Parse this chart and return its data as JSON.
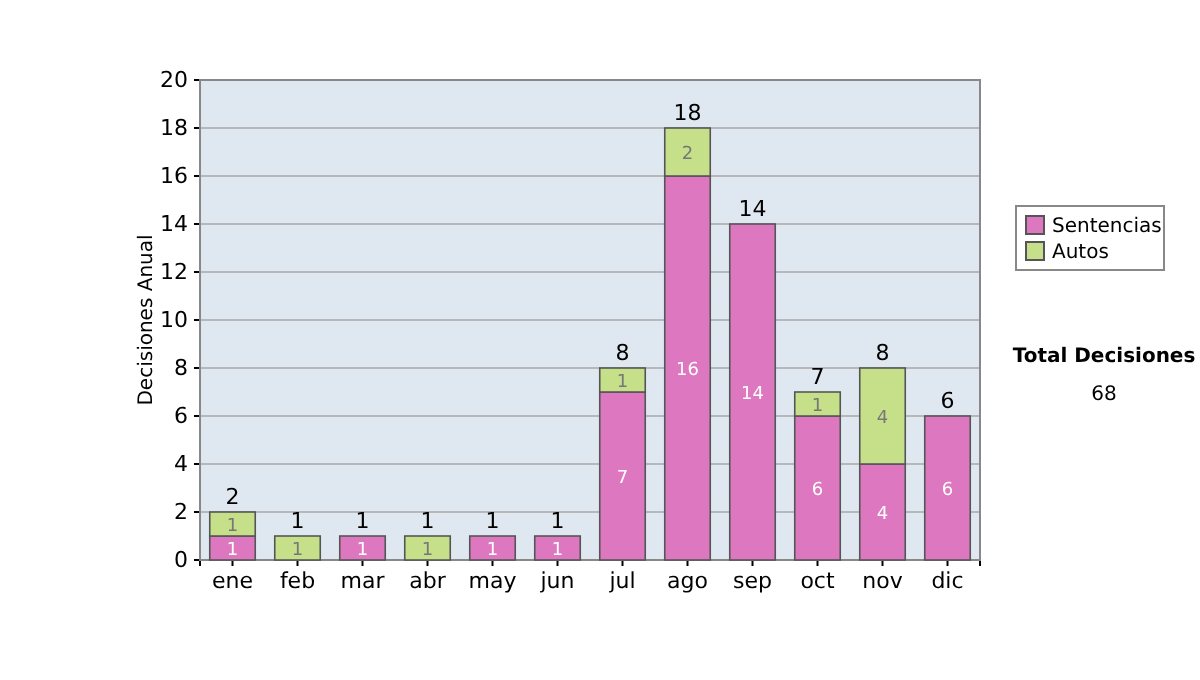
{
  "chart_data": {
    "type": "bar",
    "ylabel": "Decisiones Anual",
    "categories": [
      "ene",
      "feb",
      "mar",
      "abr",
      "may",
      "jun",
      "jul",
      "ago",
      "sep",
      "oct",
      "nov",
      "dic"
    ],
    "series": [
      {
        "name": "Sentencias",
        "color": "#dd77c0",
        "values": [
          1,
          0,
          1,
          0,
          1,
          1,
          7,
          16,
          14,
          6,
          4,
          6
        ],
        "value_labels": [
          "1",
          null,
          "1",
          null,
          "1",
          "1",
          "7",
          "16",
          "14",
          "6",
          "4",
          "6"
        ]
      },
      {
        "name": "Autos",
        "color": "#c6e08a",
        "values": [
          1,
          1,
          0,
          1,
          0,
          0,
          1,
          2,
          0,
          1,
          4,
          0
        ],
        "value_labels": [
          "1",
          "1",
          null,
          "1",
          null,
          null,
          "1",
          "2",
          null,
          "1",
          "4",
          null
        ]
      }
    ],
    "stacked": true,
    "totals": [
      "2",
      "1",
      "1",
      "1",
      "1",
      "1",
      "8",
      "18",
      "14",
      "7",
      "8",
      "6"
    ],
    "ylim": [
      0,
      20
    ],
    "yticks": [
      0,
      2,
      4,
      6,
      8,
      10,
      12,
      14,
      16,
      18,
      20
    ],
    "grid": "y",
    "legend": "right",
    "annotations": [
      "Total Decisiones",
      "68"
    ]
  }
}
